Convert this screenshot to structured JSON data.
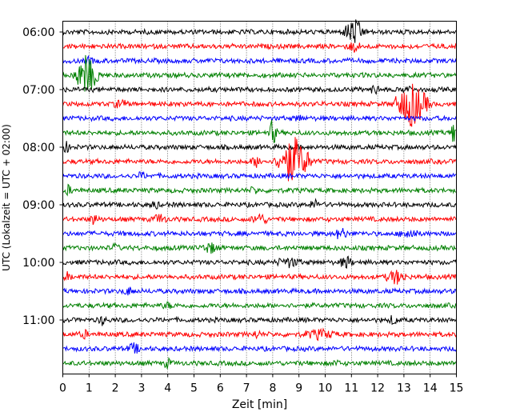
{
  "chart_data": {
    "type": "line",
    "title": "",
    "xlabel": "Zeit  [min]",
    "ylabel": "UTC (Lokalzeit = UTC + 02:00)",
    "xlim": [
      0,
      15
    ],
    "x_ticks": [
      "0",
      "1",
      "2",
      "3",
      "4",
      "5",
      "6",
      "7",
      "8",
      "9",
      "10",
      "11",
      "12",
      "13",
      "14",
      "15"
    ],
    "y_tick_labels": [
      "06:00",
      "07:00",
      "08:00",
      "09:00",
      "10:00",
      "11:00"
    ],
    "grid": "vertical dotted",
    "trace_interval_min": 15,
    "first_trace": "06:00",
    "trace_colors": [
      "#000000",
      "#ff0000",
      "#0000ff",
      "#008000"
    ],
    "series": [
      {
        "start": "06:00",
        "color": "#000000",
        "events_min": [
          {
            "x": 11.1,
            "amp": 1.6,
            "dur": 0.5
          }
        ]
      },
      {
        "start": "06:15",
        "color": "#ff0000",
        "events_min": [
          {
            "x": 11.1,
            "amp": 0.6,
            "dur": 0.3
          }
        ]
      },
      {
        "start": "06:30",
        "color": "#0000ff",
        "events_min": [
          {
            "x": 1.0,
            "amp": 0.5,
            "dur": 0.2
          }
        ]
      },
      {
        "start": "06:45",
        "color": "#008000",
        "events_min": [
          {
            "x": 0.9,
            "amp": 2.4,
            "dur": 0.6
          }
        ]
      },
      {
        "start": "07:00",
        "color": "#000000",
        "events_min": [
          {
            "x": 11.9,
            "amp": 0.6,
            "dur": 0.2
          },
          {
            "x": 13.1,
            "amp": 0.5,
            "dur": 0.2
          }
        ]
      },
      {
        "start": "07:15",
        "color": "#ff0000",
        "events_min": [
          {
            "x": 13.3,
            "amp": 2.8,
            "dur": 0.8
          },
          {
            "x": 2.2,
            "amp": 0.5,
            "dur": 0.3
          }
        ]
      },
      {
        "start": "07:30",
        "color": "#0000ff",
        "events_min": [
          {
            "x": 9.0,
            "amp": 0.4,
            "dur": 0.2
          }
        ]
      },
      {
        "start": "07:45",
        "color": "#008000",
        "events_min": [
          {
            "x": 8.0,
            "amp": 1.6,
            "dur": 0.2
          },
          {
            "x": 14.9,
            "amp": 1.4,
            "dur": 0.2
          }
        ]
      },
      {
        "start": "08:00",
        "color": "#000000",
        "events_min": [
          {
            "x": 0.1,
            "amp": 0.7,
            "dur": 0.2
          }
        ]
      },
      {
        "start": "08:15",
        "color": "#ff0000",
        "events_min": [
          {
            "x": 8.8,
            "amp": 3.0,
            "dur": 0.8
          },
          {
            "x": 7.4,
            "amp": 0.6,
            "dur": 0.3
          }
        ]
      },
      {
        "start": "08:30",
        "color": "#0000ff",
        "events_min": [
          {
            "x": 3.0,
            "amp": 0.4,
            "dur": 0.2
          }
        ]
      },
      {
        "start": "08:45",
        "color": "#008000",
        "events_min": [
          {
            "x": 0.2,
            "amp": 0.5,
            "dur": 0.2
          },
          {
            "x": 7.3,
            "amp": 0.4,
            "dur": 0.2
          }
        ]
      },
      {
        "start": "09:00",
        "color": "#000000",
        "events_min": [
          {
            "x": 3.5,
            "amp": 0.5,
            "dur": 0.2
          },
          {
            "x": 9.6,
            "amp": 0.5,
            "dur": 0.3
          }
        ]
      },
      {
        "start": "09:15",
        "color": "#ff0000",
        "events_min": [
          {
            "x": 1.2,
            "amp": 0.7,
            "dur": 0.2
          },
          {
            "x": 3.7,
            "amp": 0.6,
            "dur": 0.3
          },
          {
            "x": 7.5,
            "amp": 0.6,
            "dur": 0.4
          }
        ]
      },
      {
        "start": "09:30",
        "color": "#0000ff",
        "events_min": [
          {
            "x": 10.6,
            "amp": 0.7,
            "dur": 0.3
          },
          {
            "x": 13.2,
            "amp": 0.6,
            "dur": 0.4
          }
        ]
      },
      {
        "start": "09:45",
        "color": "#008000",
        "events_min": [
          {
            "x": 5.6,
            "amp": 0.6,
            "dur": 0.4
          },
          {
            "x": 2.0,
            "amp": 0.4,
            "dur": 0.2
          }
        ]
      },
      {
        "start": "10:00",
        "color": "#000000",
        "events_min": [
          {
            "x": 8.6,
            "amp": 0.5,
            "dur": 0.6
          },
          {
            "x": 10.8,
            "amp": 0.7,
            "dur": 0.3
          }
        ]
      },
      {
        "start": "10:15",
        "color": "#ff0000",
        "events_min": [
          {
            "x": 12.7,
            "amp": 0.8,
            "dur": 0.5
          },
          {
            "x": 0.2,
            "amp": 0.5,
            "dur": 0.2
          }
        ]
      },
      {
        "start": "10:30",
        "color": "#0000ff",
        "events_min": [
          {
            "x": 2.5,
            "amp": 0.4,
            "dur": 0.3
          }
        ]
      },
      {
        "start": "10:45",
        "color": "#008000",
        "events_min": [
          {
            "x": 4.0,
            "amp": 0.3,
            "dur": 0.3
          }
        ]
      },
      {
        "start": "11:00",
        "color": "#000000",
        "events_min": [
          {
            "x": 1.5,
            "amp": 0.5,
            "dur": 0.2
          },
          {
            "x": 12.6,
            "amp": 0.6,
            "dur": 0.2
          }
        ]
      },
      {
        "start": "11:15",
        "color": "#ff0000",
        "events_min": [
          {
            "x": 9.8,
            "amp": 0.5,
            "dur": 0.8
          },
          {
            "x": 0.8,
            "amp": 0.5,
            "dur": 0.2
          },
          {
            "x": 7.4,
            "amp": 0.4,
            "dur": 0.2
          }
        ]
      },
      {
        "start": "11:30",
        "color": "#0000ff",
        "events_min": [
          {
            "x": 2.7,
            "amp": 0.6,
            "dur": 0.3
          }
        ]
      },
      {
        "start": "11:45",
        "color": "#008000",
        "events_min": [
          {
            "x": 4.0,
            "amp": 0.5,
            "dur": 0.2
          },
          {
            "x": 10.4,
            "amp": 0.3,
            "dur": 0.2
          }
        ]
      }
    ]
  }
}
